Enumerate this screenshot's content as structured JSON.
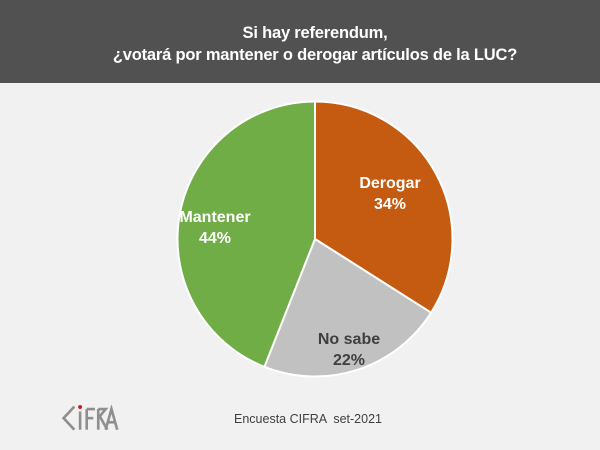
{
  "page": {
    "background": "#F1F1F1"
  },
  "header": {
    "title_line1": "Si hay referendum,",
    "title_line2": "¿votará por mantener o derogar artículos de la LUC?",
    "background": "#515151",
    "text_color": "#FFFFFF"
  },
  "chart_data": {
    "type": "pie",
    "title": "Si hay referendum, ¿votará por mantener o derogar artículos de la LUC?",
    "categories": [
      "Derogar",
      "No sabe",
      "Mantener"
    ],
    "values": [
      34,
      22,
      44
    ],
    "slices": [
      {
        "label": "Derogar",
        "value": 34,
        "value_label": "34%",
        "color": "#C55A11",
        "label_color": "#FFFFFF"
      },
      {
        "label": "No sabe",
        "value": 22,
        "value_label": "22%",
        "color": "#C1C1C1",
        "label_color": "#3F3F3F"
      },
      {
        "label": "Mantener",
        "value": 44,
        "value_label": "44%",
        "color": "#70AD47",
        "label_color": "#FFFFFF"
      }
    ],
    "start_angle_deg": 0,
    "direction": "clockwise",
    "labels_inside": true,
    "slice_border_color": "#FFFFFF",
    "legend": "none"
  },
  "footer": {
    "caption": "Encuesta CIFRA  set-2021",
    "logo": {
      "text": "CIFRA",
      "letter_color": "#8F8F8F",
      "dot_color": "#CF1D1D"
    }
  }
}
